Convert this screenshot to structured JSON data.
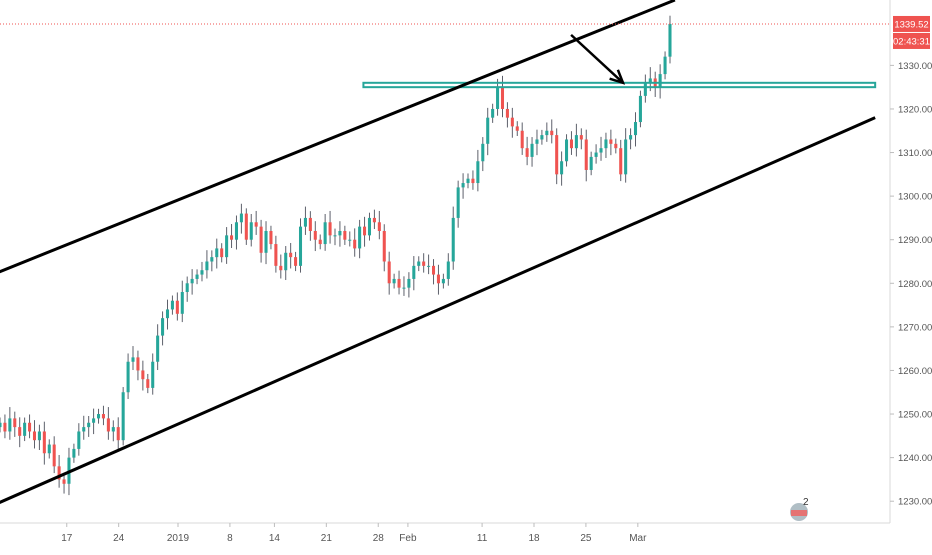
{
  "chart_data": {
    "type": "candlestick",
    "instrument_unit": "price",
    "colors": {
      "up": "#26a69a",
      "down": "#ef5350",
      "wick": "#5d606b",
      "channel": "#000000",
      "support_zone": "#26a69a",
      "price_line": "#ef5350",
      "price_tag": "#ef5350",
      "axis_text": "#555555"
    },
    "y_axis": {
      "range": [
        1225,
        1345
      ],
      "ticks": [
        "1230.00",
        "1240.00",
        "1250.00",
        "1260.00",
        "1270.00",
        "1280.00",
        "1290.00",
        "1300.00",
        "1310.00",
        "1320.00",
        "1330.00"
      ],
      "tick_values": [
        1230,
        1240,
        1250,
        1260,
        1270,
        1280,
        1290,
        1300,
        1310,
        1320,
        1330
      ]
    },
    "x_axis": {
      "range_days": [
        0,
        120
      ],
      "ticks": [
        {
          "label": "17",
          "day": 9
        },
        {
          "label": "24",
          "day": 16
        },
        {
          "label": "2019",
          "day": 24
        },
        {
          "label": "8",
          "day": 31
        },
        {
          "label": "14",
          "day": 37
        },
        {
          "label": "21",
          "day": 44
        },
        {
          "label": "28",
          "day": 51
        },
        {
          "label": "Feb",
          "day": 55
        },
        {
          "label": "11",
          "day": 65
        },
        {
          "label": "18",
          "day": 72
        },
        {
          "label": "25",
          "day": 79
        },
        {
          "label": "Mar",
          "day": 86
        }
      ]
    },
    "last_price_label": "1339.52",
    "last_price_value": 1339.5,
    "countdown_label": "02:43:31",
    "watermark_text": "2",
    "candles_close": [
      1248,
      1246,
      1249,
      1247,
      1245,
      1248,
      1246,
      1244,
      1246,
      1241,
      1243,
      1238,
      1235,
      1234,
      1240,
      1242,
      1246,
      1247,
      1248,
      1249,
      1250,
      1249,
      1246,
      1247,
      1244,
      1255,
      1262,
      1263,
      1260,
      1258,
      1256,
      1262,
      1268,
      1272,
      1274,
      1276,
      1273,
      1278,
      1280,
      1281,
      1282,
      1283,
      1285,
      1286,
      1288,
      1286,
      1291,
      1290,
      1294,
      1296,
      1290,
      1294,
      1293,
      1287,
      1292,
      1289,
      1284,
      1283,
      1287,
      1286,
      1284,
      1293,
      1295,
      1292,
      1290,
      1289,
      1294,
      1291,
      1291,
      1292,
      1290,
      1290,
      1288,
      1293,
      1291,
      1295,
      1294,
      1292,
      1285,
      1280,
      1281,
      1279,
      1279,
      1281,
      1284,
      1285,
      1284,
      1284,
      1282,
      1280,
      1281,
      1285,
      1295,
      1302,
      1303,
      1304,
      1303,
      1308,
      1312,
      1318,
      1320,
      1325,
      1320,
      1318,
      1316,
      1315,
      1311,
      1309,
      1312,
      1313,
      1314,
      1315,
      1314,
      1305,
      1308,
      1313,
      1311,
      1314,
      1313,
      1306,
      1309,
      1310,
      1311,
      1313,
      1312,
      1311,
      1305,
      1313,
      1314,
      1317,
      1323,
      1326,
      1327,
      1325,
      1328,
      1332,
      1339.5
    ],
    "annotations": {
      "channel_upper": {
        "from": [
          -1,
          1282
        ],
        "to": [
          91,
          1345
        ]
      },
      "channel_lower": {
        "from": [
          -1,
          1229
        ],
        "to": [
          118,
          1318
        ]
      },
      "support_zone": {
        "from_day": 49,
        "to_day": 118,
        "low": 1325,
        "high": 1326
      },
      "arrow": {
        "from": [
          77,
          1337
        ],
        "to": [
          84,
          1326
        ]
      }
    }
  }
}
